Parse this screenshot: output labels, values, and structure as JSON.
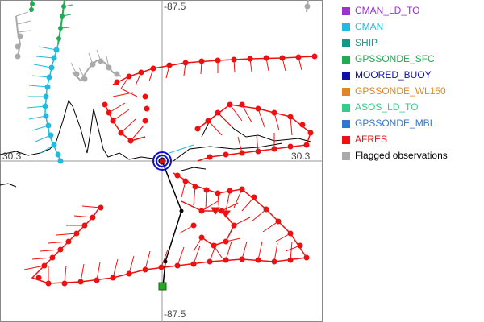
{
  "map": {
    "lat_top": "-87.5",
    "lat_bottom": "-87.5",
    "lon_left": "30.3",
    "lon_right": "30.3"
  },
  "legend": {
    "items": [
      {
        "label": "CMAN_LD_TO",
        "color": "#9933cc"
      },
      {
        "label": "CMAN",
        "color": "#22bbdd"
      },
      {
        "label": "SHIP",
        "color": "#119988"
      },
      {
        "label": "GPSSONDE_SFC",
        "color": "#22aa55"
      },
      {
        "label": "MOORED_BUOY",
        "color": "#1111aa"
      },
      {
        "label": "GPSSONDE_WL150",
        "color": "#dd8822"
      },
      {
        "label": "ASOS_LD_TO",
        "color": "#33cc88"
      },
      {
        "label": "GPSSONDE_MBL",
        "color": "#3377cc"
      },
      {
        "label": "AFRES",
        "color": "#ee1111"
      },
      {
        "label": "Flagged observations",
        "color": "#aaaaaa"
      }
    ]
  },
  "colors": {
    "afres": "#ee1111",
    "cman": "#22bbdd",
    "flagged": "#aaaaaa",
    "gpssonde_sfc": "#22aa55",
    "moored_buoy": "#1111aa",
    "coastline": "#000000",
    "grid": "#999999"
  }
}
